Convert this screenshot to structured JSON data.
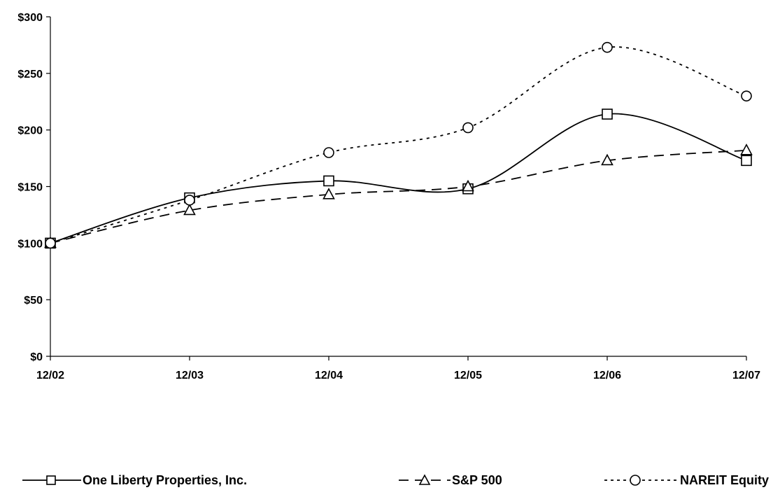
{
  "chart_data": {
    "type": "line",
    "title": "",
    "xlabel": "",
    "ylabel": "",
    "categories": [
      "12/02",
      "12/03",
      "12/04",
      "12/05",
      "12/06",
      "12/07"
    ],
    "ylim": [
      0,
      300
    ],
    "yticks": [
      0,
      50,
      100,
      150,
      200,
      250,
      300
    ],
    "ytick_labels": [
      "$0",
      "$50",
      "$100",
      "$150",
      "$200",
      "$250",
      "$300"
    ],
    "grid": false,
    "legend_position": "bottom",
    "series": [
      {
        "name": "One Liberty Properties, Inc.",
        "values": [
          100,
          140,
          155,
          148,
          214,
          173
        ],
        "line_style": "solid",
        "marker": "square",
        "color": "#000000"
      },
      {
        "name": "S&P 500",
        "values": [
          100,
          129,
          143,
          150,
          173,
          182
        ],
        "line_style": "dashed",
        "marker": "triangle",
        "color": "#000000"
      },
      {
        "name": "NAREIT Equity",
        "values": [
          100,
          138,
          180,
          202,
          273,
          230
        ],
        "line_style": "dotted",
        "marker": "circle",
        "color": "#000000"
      }
    ]
  }
}
